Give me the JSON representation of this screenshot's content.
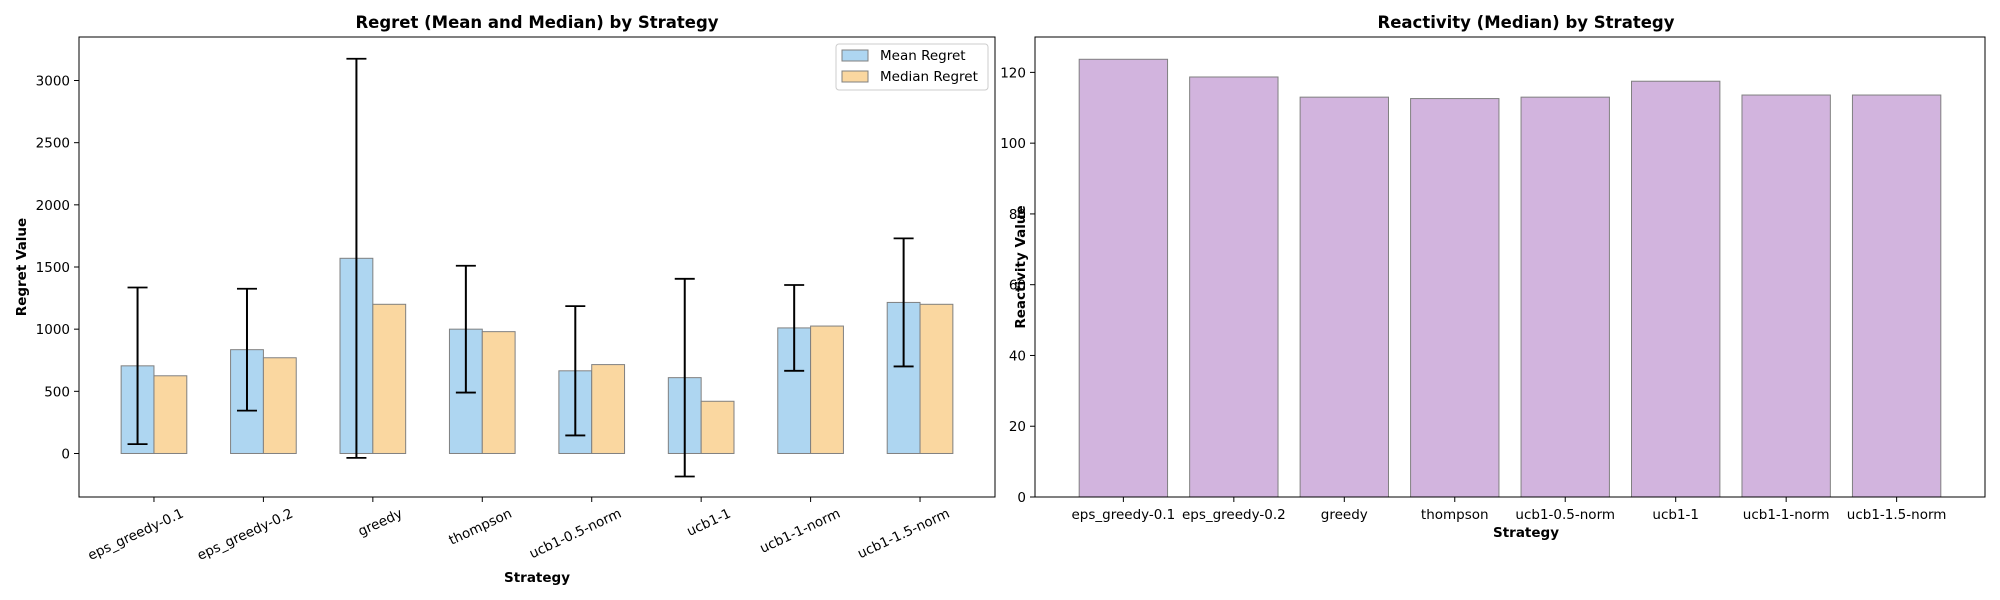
{
  "chart_data": [
    {
      "type": "bar",
      "title": "Regret (Mean and Median) by Strategy",
      "xlabel": "Strategy",
      "ylabel": "Regret Value",
      "categories": [
        "eps_greedy-0.1",
        "eps_greedy-0.2",
        "greedy",
        "thompson",
        "ucb1-0.5-norm",
        "ucb1-1",
        "ucb1-1-norm",
        "ucb1-1.5-norm"
      ],
      "series": [
        {
          "name": "Mean Regret",
          "values": [
            705,
            835,
            1570,
            1000,
            665,
            610,
            1010,
            1215
          ],
          "error": [
            630,
            490,
            1605,
            510,
            520,
            795,
            345,
            515
          ],
          "color": "#aed6f1"
        },
        {
          "name": "Median Regret",
          "values": [
            625,
            770,
            1200,
            980,
            715,
            420,
            1025,
            1200
          ],
          "color": "#fad7a0"
        }
      ],
      "ylim": [
        -350,
        3350
      ],
      "yticks": [
        0,
        500,
        1000,
        1500,
        2000,
        2500,
        3000
      ],
      "x_tick_rotation": 25,
      "legend": "top-right",
      "grid": false
    },
    {
      "type": "bar",
      "title": "Reactivity (Median) by Strategy",
      "xlabel": "Strategy",
      "ylabel": "Reactivity Value",
      "categories": [
        "eps_greedy-0.1",
        "eps_greedy-0.2",
        "greedy",
        "thompson",
        "ucb1-0.5-norm",
        "ucb1-1",
        "ucb1-1-norm",
        "ucb1-1.5-norm"
      ],
      "series": [
        {
          "values": [
            123.7,
            118.7,
            113.0,
            112.6,
            113.0,
            117.5,
            113.6,
            113.6
          ],
          "color": "#d2b4de"
        }
      ],
      "ylim": [
        0,
        130
      ],
      "yticks": [
        0,
        20,
        40,
        60,
        80,
        100,
        120
      ],
      "grid": false
    }
  ]
}
